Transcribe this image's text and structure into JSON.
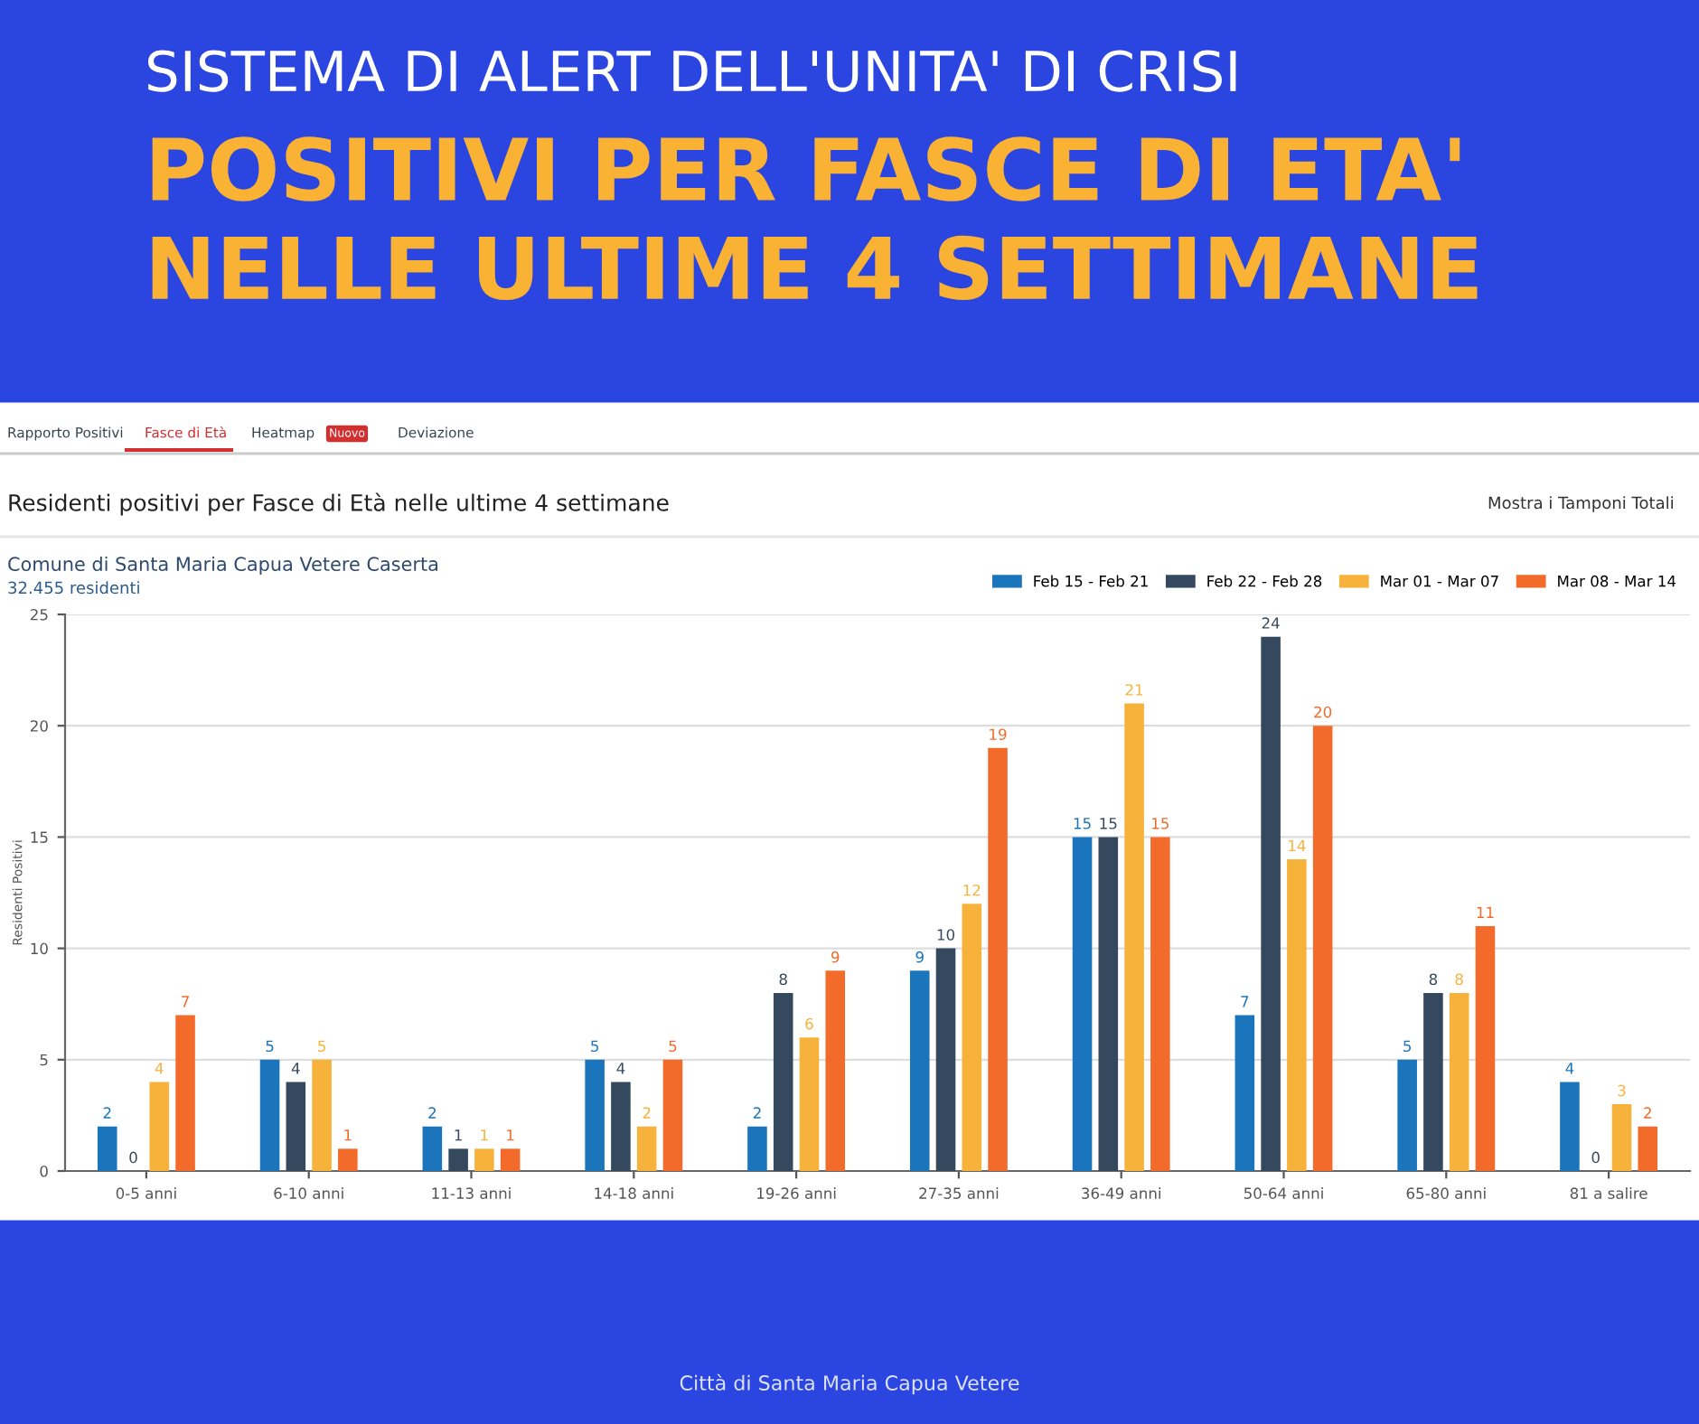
{
  "chart_data": {
    "type": "bar",
    "title": "POSITIVI PER FASCE DI ETA'\nNELLE ULTIME 4 SETTIMANE",
    "subtitle": "SISTEMA DI ALERT DELL'UNITA' DI CRISI",
    "ylabel": "Residenti Positivi",
    "categories": [
      "0-5 anni",
      "6-10 anni",
      "11-13 anni",
      "14-18 anni",
      "19-26 anni",
      "27-35 anni",
      "36-49 anni",
      "50-64 anni",
      "65-80 anni",
      "81 a salire"
    ],
    "series": [
      {
        "name": "Feb 15 - Feb 21",
        "color": "#1b75bc",
        "values": [
          2,
          5,
          2,
          5,
          2,
          9,
          15,
          7,
          5,
          4
        ]
      },
      {
        "name": "Feb 22 - Feb 28",
        "color": "#34495e",
        "values": [
          0,
          4,
          1,
          4,
          8,
          10,
          15,
          24,
          8,
          0
        ]
      },
      {
        "name": "Mar 01 - Mar 07",
        "color": "#f7b23b",
        "values": [
          4,
          5,
          1,
          2,
          6,
          12,
          21,
          14,
          8,
          3
        ]
      },
      {
        "name": "Mar 08 - Mar 14",
        "color": "#f26b2a",
        "values": [
          7,
          1,
          1,
          5,
          9,
          19,
          15,
          20,
          11,
          2
        ]
      }
    ],
    "ylim": [
      0,
      25
    ],
    "yticks": [
      0,
      5,
      10,
      15,
      20,
      25
    ],
    "grid": "y",
    "legend": "top right",
    "data_labels": true,
    "annotations": [
      "Rapporto Positivi",
      "Fasce di Età",
      "Heatmap",
      "Nuovo",
      "Deviazione",
      "Residenti positivi per Fasce di Età nelle ultime 4 settimane",
      "Mostra i Tamponi Totali",
      "Comune di Santa Maria Capua Vetere Caserta",
      "32.455 residenti",
      "Città di Santa Maria Capua Vetere"
    ]
  }
}
